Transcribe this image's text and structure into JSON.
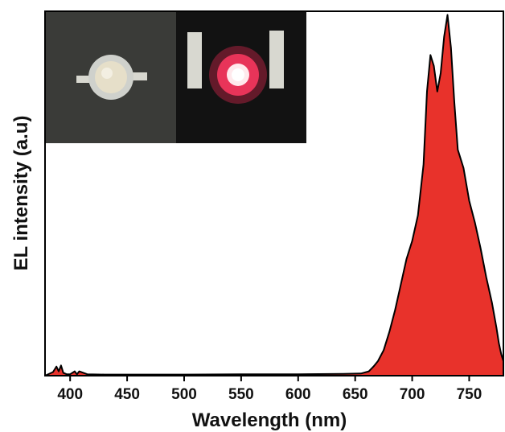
{
  "chart_data": {
    "type": "area",
    "title": "",
    "xlabel": "Wavelength (nm)",
    "ylabel": "EL intensity (a.u)",
    "xlim": [
      378,
      780
    ],
    "ylim": [
      0,
      1
    ],
    "xticks": [
      400,
      450,
      500,
      550,
      600,
      650,
      700,
      750
    ],
    "grid": false,
    "legend": "none",
    "series": [
      {
        "color": "#e8322b",
        "x": [
          378,
          385,
          388,
          390,
          392,
          394,
          397,
          400,
          404,
          406,
          408,
          415,
          430,
          450,
          500,
          550,
          600,
          640,
          655,
          662,
          666,
          670,
          675,
          680,
          685,
          690,
          695,
          700,
          705,
          710,
          713,
          716,
          719,
          722,
          725,
          728,
          731,
          734,
          737,
          740,
          745,
          750,
          755,
          760,
          765,
          770,
          774,
          776,
          778,
          780
        ],
        "y": [
          0.0,
          0.01,
          0.025,
          0.012,
          0.028,
          0.008,
          0.004,
          0.004,
          0.012,
          0.004,
          0.012,
          0.004,
          0.003,
          0.003,
          0.003,
          0.004,
          0.004,
          0.005,
          0.006,
          0.012,
          0.025,
          0.04,
          0.07,
          0.12,
          0.18,
          0.25,
          0.32,
          0.37,
          0.44,
          0.58,
          0.78,
          0.88,
          0.85,
          0.78,
          0.83,
          0.93,
          0.99,
          0.9,
          0.75,
          0.62,
          0.57,
          0.48,
          0.42,
          0.35,
          0.27,
          0.2,
          0.13,
          0.09,
          0.06,
          0.04
        ]
      }
    ]
  },
  "inset": {
    "icons": [
      "led-off-photo-icon",
      "led-on-photo-icon"
    ],
    "colors": {
      "background_left": "#3a3b38",
      "background_right": "#121212",
      "glow": "#ff2a5a"
    }
  }
}
